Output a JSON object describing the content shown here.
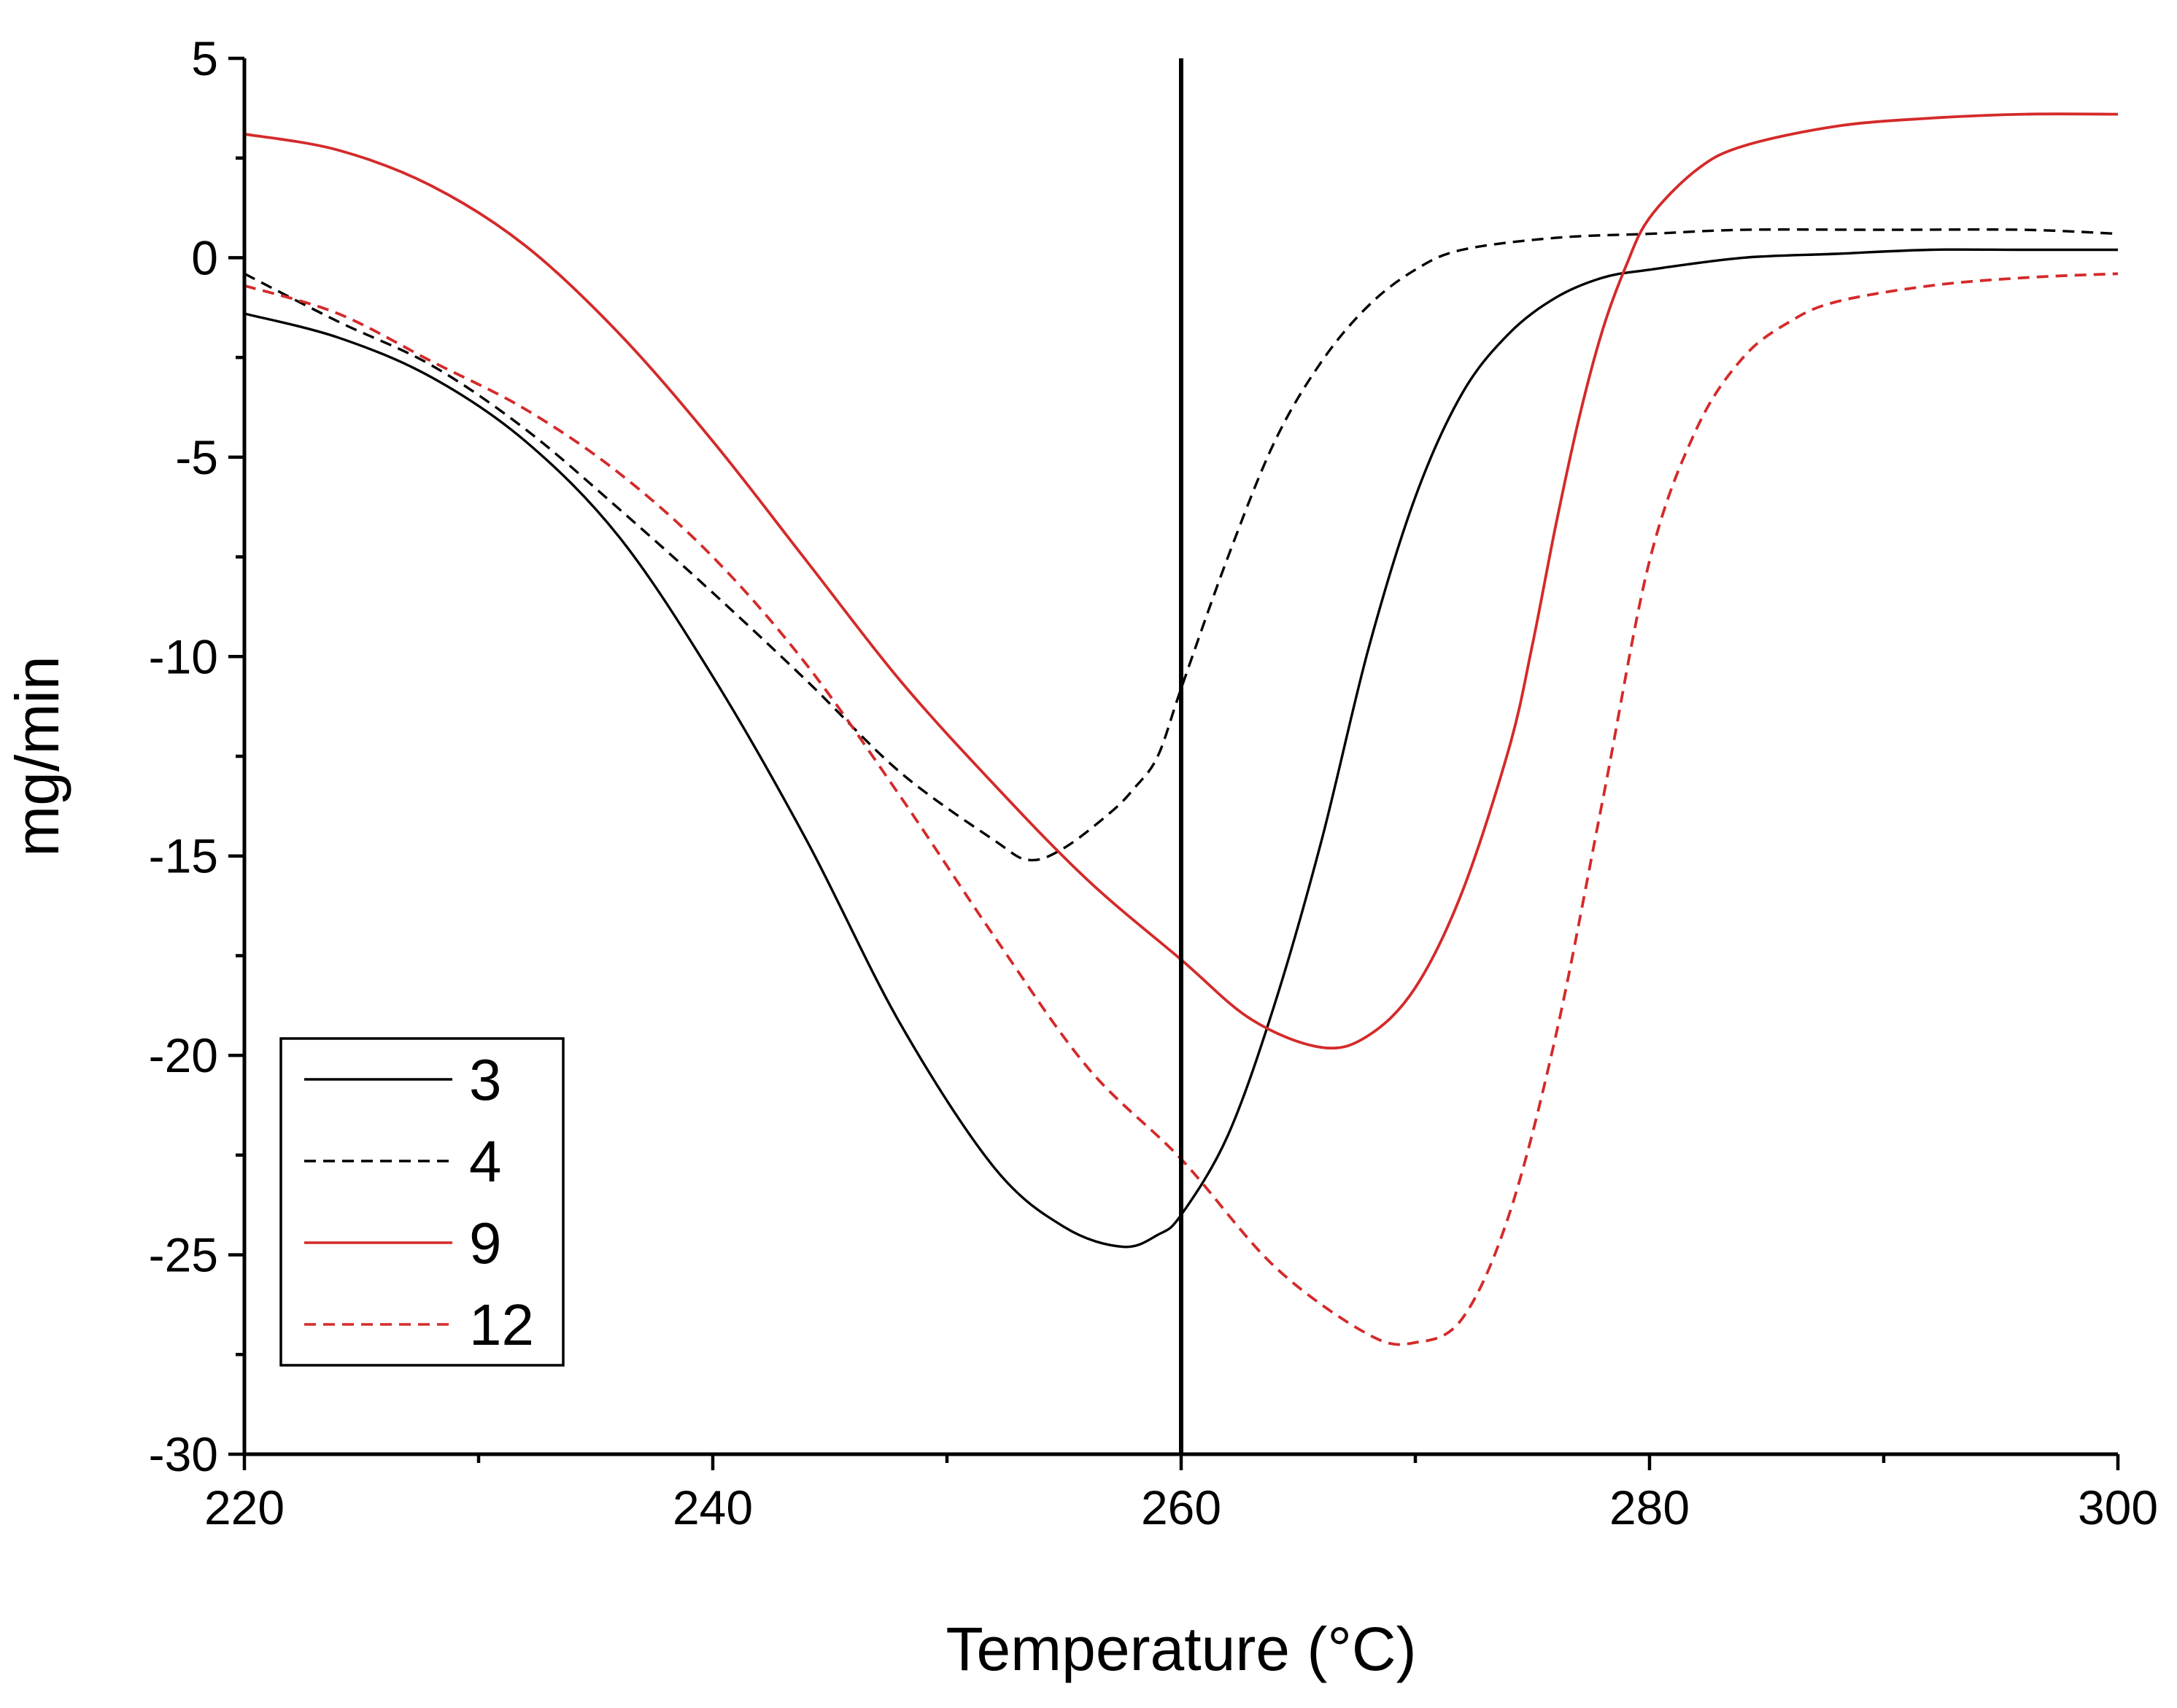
{
  "chart_data": {
    "type": "line",
    "title": "",
    "xlabel": "Temperature (°C)",
    "ylabel": "mg/min",
    "xlim": [
      220,
      300
    ],
    "ylim": [
      -30,
      5
    ],
    "x_ticks": [
      220,
      240,
      260,
      280,
      300
    ],
    "y_ticks": [
      5,
      0,
      -5,
      -10,
      -15,
      -20,
      -25,
      -30
    ],
    "x_tick_labels": [
      "220",
      "240",
      "260",
      "280",
      "300"
    ],
    "y_tick_labels": [
      "5",
      "0",
      "-5",
      "-10",
      "-15",
      "-20",
      "-25",
      "-30"
    ],
    "x_minor_step": 10,
    "y_minor_step": 2.5,
    "reference_line_x": 260,
    "legend_position": "bottom-left",
    "series": [
      {
        "name": "3",
        "color": "#000000",
        "dash": "solid",
        "x": [
          220,
          224,
          228,
          232,
          236,
          240,
          244,
          248,
          252,
          255,
          257.5,
          259,
          260,
          262,
          264,
          266,
          268,
          270,
          272,
          274,
          276,
          278,
          280,
          284,
          288,
          292,
          296,
          300
        ],
        "y": [
          -1.4,
          -2.0,
          -3.0,
          -4.6,
          -7.0,
          -10.5,
          -14.6,
          -19.2,
          -22.8,
          -24.3,
          -24.8,
          -24.5,
          -24.0,
          -22.0,
          -18.7,
          -14.6,
          -9.8,
          -6.0,
          -3.4,
          -1.9,
          -1.0,
          -0.5,
          -0.3,
          0.0,
          0.1,
          0.2,
          0.2,
          0.2
        ]
      },
      {
        "name": "4",
        "color": "#000000",
        "dash": "dashed",
        "x": [
          220,
          224,
          228,
          232,
          236,
          240,
          244,
          248,
          252,
          253.5,
          255,
          257,
          258,
          259,
          260,
          262,
          264,
          266,
          268,
          270,
          272,
          276,
          280,
          284,
          290,
          296,
          300
        ],
        "y": [
          -0.4,
          -1.6,
          -2.7,
          -4.3,
          -6.3,
          -8.4,
          -10.6,
          -12.9,
          -14.6,
          -15.1,
          -14.8,
          -13.9,
          -13.3,
          -12.5,
          -10.8,
          -7.5,
          -4.6,
          -2.6,
          -1.2,
          -0.3,
          0.2,
          0.5,
          0.6,
          0.7,
          0.7,
          0.7,
          0.6
        ]
      },
      {
        "name": "9",
        "color": "#d42a2a",
        "dash": "solid",
        "x": [
          220,
          224,
          228,
          232,
          236,
          240,
          244,
          248,
          252,
          256,
          260,
          263,
          266,
          268,
          270,
          272,
          274,
          275,
          276,
          277,
          278,
          279,
          280,
          282,
          284,
          288,
          292,
          296,
          300
        ],
        "y": [
          3.1,
          2.7,
          1.8,
          0.3,
          -1.9,
          -4.6,
          -7.6,
          -10.6,
          -13.2,
          -15.6,
          -17.6,
          -19.1,
          -19.8,
          -19.5,
          -18.3,
          -15.9,
          -12.3,
          -9.7,
          -6.7,
          -4.0,
          -1.8,
          -0.2,
          1.0,
          2.2,
          2.8,
          3.3,
          3.5,
          3.6,
          3.6
        ]
      },
      {
        "name": "12",
        "color": "#d42a2a",
        "dash": "dashed",
        "x": [
          220,
          224,
          228,
          232,
          236,
          240,
          244,
          248,
          252,
          256,
          260,
          264,
          268,
          270,
          272,
          274,
          276,
          278,
          280,
          282,
          284,
          286,
          288,
          292,
          296,
          300
        ],
        "y": [
          -0.7,
          -1.4,
          -2.6,
          -3.8,
          -5.4,
          -7.5,
          -10.2,
          -13.5,
          -17.0,
          -20.3,
          -22.6,
          -25.3,
          -27.0,
          -27.2,
          -26.6,
          -24.0,
          -19.5,
          -13.6,
          -7.6,
          -4.3,
          -2.5,
          -1.6,
          -1.1,
          -0.7,
          -0.5,
          -0.4
        ]
      }
    ]
  }
}
